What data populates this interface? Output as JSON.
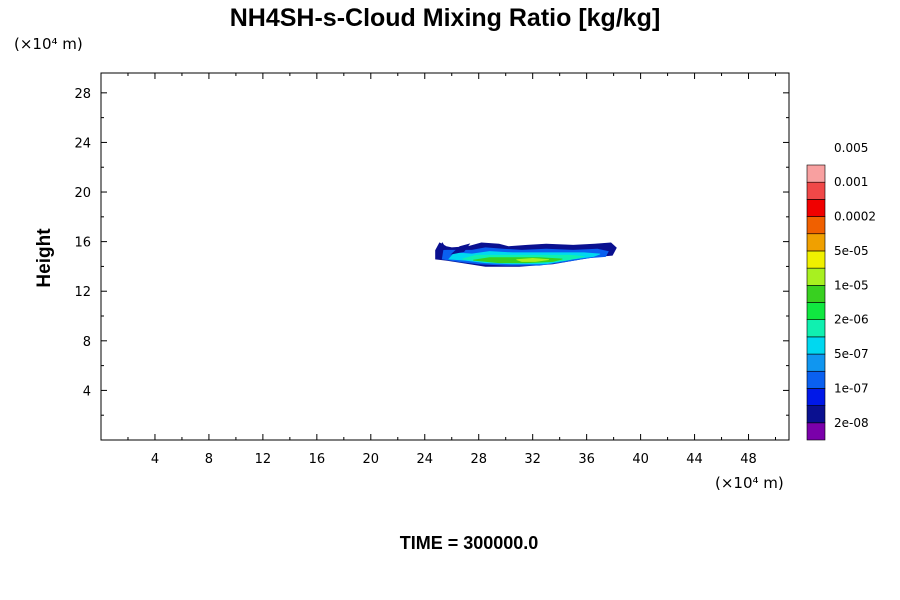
{
  "chart_data": {
    "type": "heatmap",
    "title": "NH4SH-s-Cloud Mixing Ratio [kg/kg]",
    "ylabel": "Height",
    "x_unit": "(×10⁴ m)",
    "y_unit": "(×10⁴ m)",
    "xlim": [
      0,
      51
    ],
    "ylim": [
      0,
      29.6
    ],
    "x_ticks": [
      4,
      8,
      12,
      16,
      20,
      24,
      28,
      32,
      36,
      40,
      44,
      48
    ],
    "y_ticks": [
      4,
      8,
      12,
      16,
      20,
      24,
      28
    ],
    "time_label": "TIME = 300000.0",
    "colorbar": {
      "colors": [
        "#7a00aa",
        "#0a1090",
        "#0018e8",
        "#0a60f0",
        "#1096f0",
        "#00d8f0",
        "#10f0b0",
        "#10e840",
        "#38d020",
        "#a8f020",
        "#f0f000",
        "#f0a000",
        "#f06000",
        "#f00000",
        "#f04848",
        "#f8a0a0"
      ],
      "labels": [
        "2e-08",
        "1e-07",
        "5e-07",
        "2e-06",
        "1e-05",
        "5e-05",
        "0.0002",
        "0.001",
        "0.005"
      ]
    },
    "cloud_layers": [
      {
        "color": "#0a1090",
        "points": [
          [
            24.8,
            14.6
          ],
          [
            24.8,
            15.3
          ],
          [
            25.1,
            15.9
          ],
          [
            25.6,
            15.6
          ],
          [
            26.0,
            15.5
          ],
          [
            27.2,
            15.6
          ],
          [
            28.2,
            15.9
          ],
          [
            29.5,
            15.8
          ],
          [
            30.2,
            15.6
          ],
          [
            31.6,
            15.7
          ],
          [
            33.0,
            15.8
          ],
          [
            35.0,
            15.7
          ],
          [
            36.6,
            15.8
          ],
          [
            37.8,
            15.9
          ],
          [
            38.2,
            15.5
          ],
          [
            37.9,
            14.9
          ],
          [
            36.8,
            14.8
          ],
          [
            35.6,
            14.6
          ],
          [
            33.5,
            14.2
          ],
          [
            31.0,
            14.0
          ],
          [
            28.5,
            14.0
          ],
          [
            26.8,
            14.3
          ],
          [
            25.6,
            14.5
          ]
        ]
      },
      {
        "color": "#0a60f0",
        "points": [
          [
            25.3,
            14.6
          ],
          [
            25.4,
            15.3
          ],
          [
            26.3,
            15.3
          ],
          [
            27.5,
            15.3
          ],
          [
            28.5,
            15.5
          ],
          [
            29.8,
            15.4
          ],
          [
            31.2,
            15.3
          ],
          [
            33.0,
            15.4
          ],
          [
            35.0,
            15.3
          ],
          [
            36.8,
            15.4
          ],
          [
            37.6,
            15.2
          ],
          [
            37.4,
            14.8
          ],
          [
            36.2,
            14.7
          ],
          [
            34.5,
            14.4
          ],
          [
            32.5,
            14.1
          ],
          [
            30.0,
            14.1
          ],
          [
            28.0,
            14.2
          ],
          [
            26.5,
            14.4
          ]
        ]
      },
      {
        "color": "#00d8f0",
        "points": [
          [
            25.8,
            14.6
          ],
          [
            26.2,
            15.1
          ],
          [
            27.5,
            15.0
          ],
          [
            28.8,
            15.2
          ],
          [
            30.5,
            15.1
          ],
          [
            32.0,
            15.1
          ],
          [
            34.0,
            15.1
          ],
          [
            35.8,
            15.1
          ],
          [
            37.0,
            15.0
          ],
          [
            36.5,
            14.8
          ],
          [
            35.0,
            14.6
          ],
          [
            33.0,
            14.2
          ],
          [
            30.5,
            14.2
          ],
          [
            28.5,
            14.3
          ],
          [
            27.0,
            14.5
          ]
        ]
      },
      {
        "color": "#10f0b0",
        "points": [
          [
            26.8,
            14.6
          ],
          [
            27.8,
            14.9
          ],
          [
            29.4,
            14.9
          ],
          [
            31.0,
            14.9
          ],
          [
            33.0,
            14.9
          ],
          [
            34.8,
            14.9
          ],
          [
            35.8,
            14.8
          ],
          [
            34.5,
            14.5
          ],
          [
            32.5,
            14.3
          ],
          [
            30.5,
            14.3
          ],
          [
            28.6,
            14.4
          ]
        ]
      },
      {
        "color": "#38d020",
        "points": [
          [
            27.6,
            14.5
          ],
          [
            28.8,
            14.7
          ],
          [
            30.5,
            14.7
          ],
          [
            32.5,
            14.7
          ],
          [
            34.2,
            14.6
          ],
          [
            33.5,
            14.4
          ],
          [
            31.5,
            14.3
          ],
          [
            29.5,
            14.3
          ]
        ]
      },
      {
        "color": "#a8f020",
        "points": [
          [
            30.8,
            14.55
          ],
          [
            32.0,
            14.65
          ],
          [
            33.2,
            14.55
          ],
          [
            32.2,
            14.4
          ],
          [
            31.2,
            14.4
          ]
        ]
      }
    ],
    "fragments": [
      {
        "color": "#0a1090",
        "points": [
          [
            26.0,
            15.0
          ],
          [
            26.6,
            15.6
          ],
          [
            27.3,
            15.8
          ],
          [
            26.9,
            15.2
          ]
        ]
      },
      {
        "color": "#0a1090",
        "points": [
          [
            25.0,
            15.3
          ],
          [
            25.3,
            15.9
          ],
          [
            25.6,
            15.4
          ]
        ]
      }
    ]
  }
}
